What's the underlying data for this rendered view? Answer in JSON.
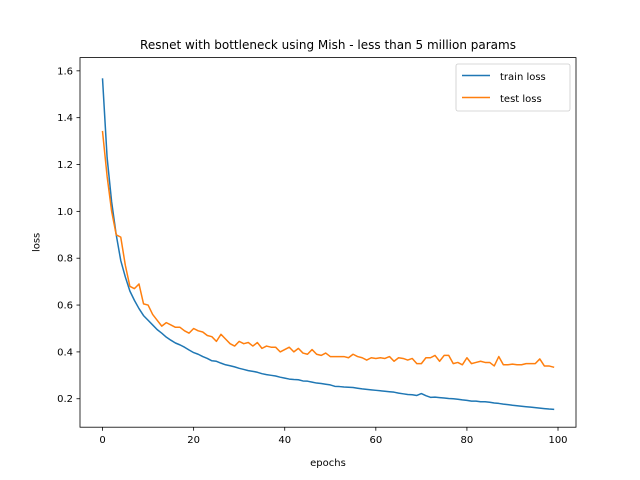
{
  "chart_data": {
    "type": "line",
    "title": "Resnet with bottleneck using Mish - less than 5 million params",
    "xlabel": "epochs",
    "ylabel": "loss",
    "xlim": [
      -4.95,
      103.95
    ],
    "ylim": [
      0.0785,
      1.6565
    ],
    "xticks": [
      0,
      20,
      40,
      60,
      80,
      100
    ],
    "yticks": [
      0.2,
      0.4,
      0.6,
      0.8,
      1.0,
      1.2,
      1.4,
      1.6
    ],
    "xtick_labels": [
      "0",
      "20",
      "40",
      "60",
      "80",
      "100"
    ],
    "ytick_labels": [
      "0.2",
      "0.4",
      "0.6",
      "0.8",
      "1.0",
      "1.2",
      "1.4",
      "1.6"
    ],
    "grid": false,
    "legend_position": "top-right",
    "x": [
      0,
      1,
      2,
      3,
      4,
      5,
      6,
      7,
      8,
      9,
      10,
      11,
      12,
      13,
      14,
      15,
      16,
      17,
      18,
      19,
      20,
      21,
      22,
      23,
      24,
      25,
      26,
      27,
      28,
      29,
      30,
      31,
      32,
      33,
      34,
      35,
      36,
      37,
      38,
      39,
      40,
      41,
      42,
      43,
      44,
      45,
      46,
      47,
      48,
      49,
      50,
      51,
      52,
      53,
      54,
      55,
      56,
      57,
      58,
      59,
      60,
      61,
      62,
      63,
      64,
      65,
      66,
      67,
      68,
      69,
      70,
      71,
      72,
      73,
      74,
      75,
      76,
      77,
      78,
      79,
      80,
      81,
      82,
      83,
      84,
      85,
      86,
      87,
      88,
      89,
      90,
      91,
      92,
      93,
      94,
      95,
      96,
      97,
      98,
      99
    ],
    "series": [
      {
        "name": "train loss",
        "color": "#1f77b4",
        "values": [
          1.565,
          1.23,
          1.04,
          0.9,
          0.79,
          0.72,
          0.66,
          0.62,
          0.585,
          0.555,
          0.535,
          0.515,
          0.495,
          0.48,
          0.463,
          0.45,
          0.438,
          0.43,
          0.42,
          0.408,
          0.397,
          0.39,
          0.38,
          0.372,
          0.362,
          0.36,
          0.352,
          0.345,
          0.341,
          0.336,
          0.33,
          0.325,
          0.32,
          0.317,
          0.313,
          0.307,
          0.303,
          0.3,
          0.297,
          0.292,
          0.288,
          0.284,
          0.282,
          0.281,
          0.276,
          0.275,
          0.271,
          0.267,
          0.265,
          0.262,
          0.259,
          0.253,
          0.252,
          0.25,
          0.249,
          0.248,
          0.245,
          0.242,
          0.24,
          0.238,
          0.236,
          0.234,
          0.232,
          0.23,
          0.228,
          0.224,
          0.221,
          0.218,
          0.217,
          0.214,
          0.222,
          0.213,
          0.206,
          0.207,
          0.205,
          0.203,
          0.201,
          0.2,
          0.198,
          0.195,
          0.193,
          0.19,
          0.19,
          0.187,
          0.187,
          0.185,
          0.182,
          0.18,
          0.177,
          0.175,
          0.172,
          0.17,
          0.168,
          0.166,
          0.164,
          0.162,
          0.16,
          0.158,
          0.156,
          0.155
        ]
      },
      {
        "name": "test loss",
        "color": "#ff7f0e",
        "values": [
          1.34,
          1.15,
          1.0,
          0.9,
          0.89,
          0.77,
          0.68,
          0.67,
          0.69,
          0.605,
          0.6,
          0.56,
          0.535,
          0.51,
          0.525,
          0.515,
          0.505,
          0.505,
          0.49,
          0.48,
          0.5,
          0.49,
          0.485,
          0.47,
          0.465,
          0.445,
          0.475,
          0.455,
          0.435,
          0.425,
          0.445,
          0.435,
          0.44,
          0.425,
          0.44,
          0.415,
          0.425,
          0.42,
          0.42,
          0.4,
          0.41,
          0.42,
          0.4,
          0.415,
          0.395,
          0.39,
          0.41,
          0.39,
          0.385,
          0.395,
          0.38,
          0.38,
          0.38,
          0.38,
          0.375,
          0.39,
          0.38,
          0.375,
          0.365,
          0.375,
          0.372,
          0.375,
          0.372,
          0.38,
          0.36,
          0.375,
          0.372,
          0.365,
          0.372,
          0.35,
          0.35,
          0.375,
          0.375,
          0.385,
          0.36,
          0.385,
          0.385,
          0.35,
          0.355,
          0.345,
          0.375,
          0.35,
          0.355,
          0.36,
          0.355,
          0.355,
          0.34,
          0.38,
          0.345,
          0.345,
          0.348,
          0.345,
          0.345,
          0.35,
          0.35,
          0.35,
          0.37,
          0.34,
          0.34,
          0.335
        ]
      }
    ]
  }
}
